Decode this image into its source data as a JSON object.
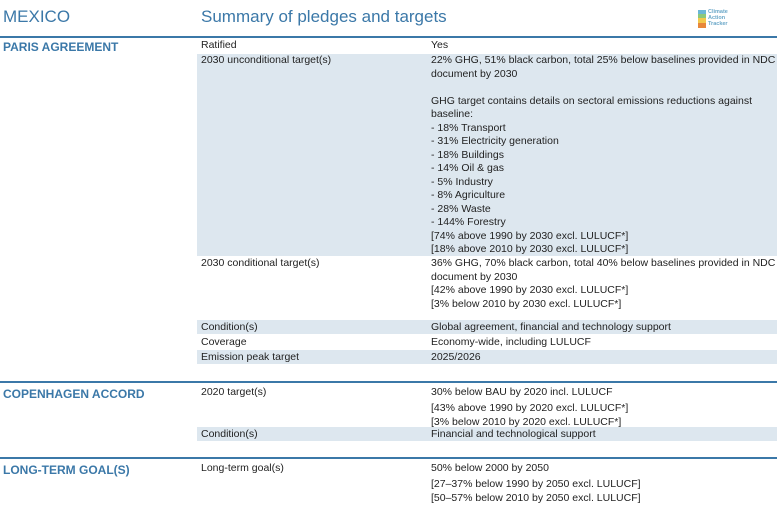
{
  "header": {
    "country": "MEXICO",
    "title": "Summary of pledges and targets",
    "logo_lines": [
      "Climate",
      "Action",
      "Tracker"
    ]
  },
  "sections": {
    "paris": {
      "title": "PARIS AGREEMENT",
      "ratified": {
        "label": "Ratified",
        "value": [
          "Yes"
        ]
      },
      "unconditional": {
        "label": "2030 unconditional target(s)",
        "value": [
          "22% GHG, 51% black carbon, total 25% below baselines provided in NDC",
          "document by 2030",
          "",
          "GHG target contains details on sectoral emissions reductions against",
          "baseline:",
          "- 18% Transport",
          "- 31% Electricity generation",
          "- 18% Buildings",
          "- 14% Oil & gas",
          "- 5% Industry",
          "- 8% Agriculture",
          "- 28% Waste",
          "- 144% Forestry",
          "[74% above 1990 by 2030 excl. LULUCF*]",
          "[18% above 2010 by 2030 excl. LULUCF*]"
        ]
      },
      "conditional": {
        "label": "2030 conditional target(s)",
        "value": [
          "36% GHG, 70% black carbon, total 40% below baselines provided in NDC",
          "document by 2030",
          "[42% above 1990 by 2030 excl. LULUCF*]",
          "[3% below 2010 by 2030 excl. LULUCF*]"
        ]
      },
      "conditions": {
        "label": "Condition(s)",
        "value": [
          "Global agreement, financial and technology support"
        ]
      },
      "coverage": {
        "label": "Coverage",
        "value": [
          "Economy-wide, including LULUCF"
        ]
      },
      "peak": {
        "label": "Emission peak target",
        "value": [
          "2025/2026"
        ]
      }
    },
    "copenhagen": {
      "title": "COPENHAGEN ACCORD",
      "target": {
        "label": "2020 target(s)",
        "value": [
          "30% below BAU by 2020 incl. LULUCF",
          "[43% above 1990 by 2020 excl. LULUCF*]",
          "[3% below 2010 by 2020 excl. LULUCF*]"
        ]
      },
      "conditions": {
        "label": "Condition(s)",
        "value": [
          "Financial and technological support"
        ]
      }
    },
    "longterm": {
      "title": "LONG-TERM GOAL(S)",
      "goal": {
        "label": "Long-term goal(s)",
        "value": [
          "50% below 2000 by 2050",
          "[27–37% below 1990 by 2050 excl. LULUCF]",
          "[50–57% below 2010 by 2050 excl. LULUCF]"
        ]
      }
    }
  },
  "colors": {
    "accent": "#3b78a8",
    "shade": "#dde7ef"
  }
}
